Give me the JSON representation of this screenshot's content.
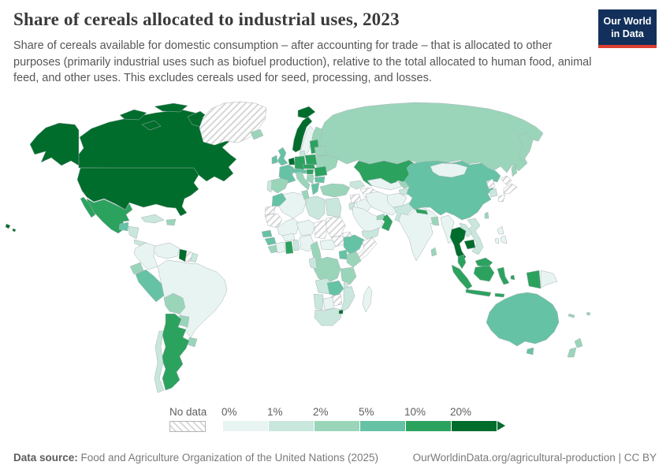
{
  "header": {
    "title": "Share of cereals allocated to industrial uses, 2023",
    "subtitle": "Share of cereals available for domestic consumption – after accounting for trade – that is allocated to other purposes (primarily industrial uses such as biofuel production), relative to the total allocated to human food, animal feed, and other uses. This excludes cereals used for seed, processing, and losses.",
    "logo": {
      "line1": "Our World",
      "line2": "in Data",
      "bg_color": "#12305b",
      "accent_color": "#dc3e32"
    }
  },
  "footer": {
    "source_label": "Data source:",
    "source_text": " Food and Agriculture Organization of the United Nations (2025)",
    "credit": "OurWorldinData.org/agricultural-production | CC BY"
  },
  "chart_data": {
    "type": "heatmap",
    "subtype": "choropleth_world_map",
    "title": "Share of cereals allocated to industrial uses, 2023",
    "unit": "%",
    "projection": "world",
    "map": {
      "ocean_color": "#ffffff",
      "border_color": "#a9b3b6",
      "no_data_pattern_line": "#d6d6d6"
    },
    "legend": {
      "no_data_label": "No data",
      "bins": [
        {
          "label": "0%",
          "range": "0–1%",
          "color": "#e8f4f2"
        },
        {
          "label": "1%",
          "range": "1–2%",
          "color": "#c9e7dc"
        },
        {
          "label": "2%",
          "range": "2–5%",
          "color": "#9ad5ba"
        },
        {
          "label": "5%",
          "range": "5–10%",
          "color": "#66c2a4"
        },
        {
          "label": "10%",
          "range": "10–20%",
          "color": "#2ca25f"
        },
        {
          "label": "20%",
          "range": ">20%",
          "color": "#006d2c"
        }
      ]
    },
    "country_bins": {
      "united-states": 5,
      "canada": 5,
      "greenland": "no_data",
      "mexico": 4,
      "guatemala-belize": 3,
      "honduras-nicaragua": 1,
      "costa-rica-panama": 1,
      "cuba": 1,
      "dominican-republic": 2,
      "colombia": 0,
      "venezuela": 0,
      "guyana": 5,
      "suriname": "no_data",
      "french-guiana": 1,
      "ecuador": 2,
      "peru": 3,
      "brazil": 0,
      "bolivia": 2,
      "paraguay": 2,
      "uruguay": 2,
      "argentina": 4,
      "chile": 1,
      "iceland": 2,
      "norway": 5,
      "sweden": 0,
      "finland": 2,
      "denmark": 1,
      "united-kingdom": 3,
      "ireland": 3,
      "belgium-netherlands": 5,
      "germany": 4,
      "france": 3,
      "spain": 2,
      "portugal": 1,
      "italy": 2,
      "austria-switzerland": 3,
      "czechia-slovakia": 4,
      "poland": 4,
      "baltic-states": 4,
      "belarus": 2,
      "ukraine": 2,
      "hungary": 4,
      "romania": 4,
      "balkans": 2,
      "bulgaria": 3,
      "greece": 3,
      "russia": 2,
      "kazakhstan": 4,
      "turkey": 2,
      "georgia-azerbaijan": 1,
      "turkmenistan": "no_data",
      "uzbekistan": 0,
      "kyrgyzstan": 2,
      "tajikistan": 1,
      "syria": "no_data",
      "jordan-israel": 1,
      "iraq": 0,
      "iran": 0,
      "saudi-arabia": 0,
      "yemen": 1,
      "oman": 4,
      "uae-qatar": 2,
      "afghanistan": 0,
      "pakistan": 1,
      "india": 0,
      "nepal": 4,
      "bangladesh": 2,
      "sri-lanka": 2,
      "china": 3,
      "mongolia": 0,
      "north-korea": "no_data",
      "south-korea": 1,
      "japan": "no_data",
      "taiwan": 2,
      "myanmar": 0,
      "thailand": 5,
      "laos": 1,
      "cambodia": 5,
      "vietnam": 1,
      "malaysia": 4,
      "indonesia": 4,
      "philippines": 0,
      "papua-new-guinea": 0,
      "australia": 3,
      "new-zealand": 2,
      "new-caledonia": 2,
      "fiji": 2,
      "morocco": 3,
      "western-sahara": "no_data",
      "mauritania": "no_data",
      "algeria": 0,
      "tunisia": 2,
      "libya": 1,
      "egypt": 1,
      "mali": 0,
      "niger": 0,
      "chad": "no_data",
      "sudan": "no_data",
      "eritrea": "no_data",
      "senegal": 3,
      "guinea": 3,
      "sierra-leone-liberia": 2,
      "ivory-coast": 0,
      "ghana": 4,
      "togo-benin": 1,
      "burkina-faso": 0,
      "nigeria": 0,
      "cameroon": 2,
      "central-african-republic": 0,
      "south-sudan": "no_data",
      "ethiopia": 3,
      "somalia": "no_data",
      "kenya": 2,
      "uganda": 3,
      "dr-congo": 2,
      "gabon-congo": 1,
      "tanzania": 2,
      "angola": 1,
      "zambia": 3,
      "malawi": 1,
      "mozambique": 1,
      "zimbabwe": "no_data",
      "botswana": 0,
      "namibia": 1,
      "south-africa": 1,
      "eswatini": 5,
      "madagascar": 0
    }
  }
}
